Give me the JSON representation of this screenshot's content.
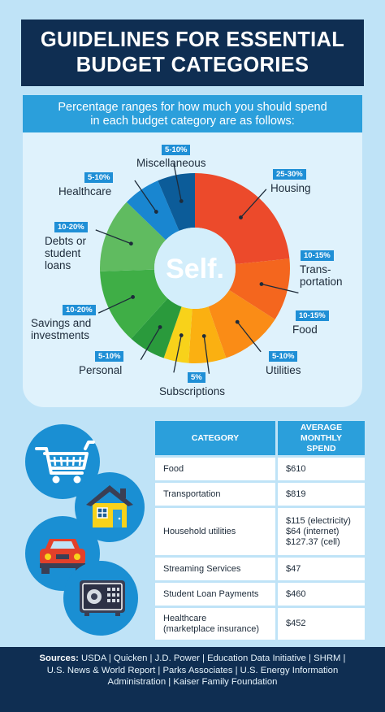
{
  "title": {
    "line1": "GUIDELINES FOR ESSENTIAL",
    "line2": "BUDGET CATEGORIES"
  },
  "subtitle": {
    "line1": "Percentage ranges for how much you should spend",
    "line2": "in each budget category are as follows:"
  },
  "logo_text": "Self.",
  "chart_data": {
    "type": "pie",
    "variant": "donut",
    "slices": [
      {
        "label": "Housing",
        "range": "25-30%",
        "value": 27.5,
        "color": "#ec4a2b"
      },
      {
        "label": "Trans-portation",
        "range": "10-15%",
        "value": 12.5,
        "color": "#f4661e"
      },
      {
        "label": "Food",
        "range": "10-15%",
        "value": 12.5,
        "color": "#fa8c16"
      },
      {
        "label": "Utilities",
        "range": "5-10%",
        "value": 7.5,
        "color": "#fbb011"
      },
      {
        "label": "Subscriptions",
        "range": "5%",
        "value": 5,
        "color": "#f8d21a"
      },
      {
        "label": "Personal",
        "range": "5-10%",
        "value": 7.5,
        "color": "#2a9a3c"
      },
      {
        "label": "Savings and investments",
        "range": "10-20%",
        "value": 15,
        "color": "#3fae46"
      },
      {
        "label": "Debts or student loans",
        "range": "10-20%",
        "value": 15,
        "color": "#60bb60"
      },
      {
        "label": "Healthcare",
        "range": "5-10%",
        "value": 7.5,
        "color": "#1986d0"
      },
      {
        "label": "Miscellaneous",
        "range": "5-10%",
        "value": 7.5,
        "color": "#0c5c99"
      }
    ]
  },
  "labels": {
    "misc": {
      "range": "5-10%",
      "name": "Miscellaneous"
    },
    "health": {
      "range": "5-10%",
      "name": "Healthcare"
    },
    "housing": {
      "range": "25-30%",
      "name": "Housing"
    },
    "debts": {
      "range": "10-20%",
      "l1": "Debts or",
      "l2": "student",
      "l3": "loans"
    },
    "transport": {
      "range": "10-15%",
      "l1": "Trans-",
      "l2": "portation"
    },
    "food": {
      "range": "10-15%",
      "name": "Food"
    },
    "savings": {
      "range": "10-20%",
      "l1": "Savings and",
      "l2": "investments"
    },
    "personal": {
      "range": "5-10%",
      "name": "Personal"
    },
    "utilities": {
      "range": "5-10%",
      "name": "Utilities"
    },
    "subs": {
      "range": "5%",
      "name": "Subscriptions"
    }
  },
  "table": {
    "headers": {
      "category": "CATEGORY",
      "spend_l1": "AVERAGE",
      "spend_l2": "MONTHLY SPEND"
    },
    "rows": [
      {
        "category": "Food",
        "spend": "$610"
      },
      {
        "category": "Transportation",
        "spend": "$819"
      },
      {
        "category": "Household utilities",
        "spend_l1": "$115 (electricity)",
        "spend_l2": "$64 (internet)",
        "spend_l3": "$127.37 (cell)"
      },
      {
        "category": "Streaming Services",
        "spend": "$47"
      },
      {
        "category": "Student Loan Payments",
        "spend": "$460"
      },
      {
        "category_l1": "Healthcare",
        "category_l2": "(marketplace insurance)",
        "spend": "$452"
      }
    ]
  },
  "icons": [
    "shopping-cart-icon",
    "house-icon",
    "car-icon",
    "safe-icon"
  ],
  "sources": {
    "label": "Sources:",
    "line1": " USDA | Quicken | J.D. Power | Education Data Initiative | SHRM |",
    "line2": "U.S. News & World Report | Parks Associates | U.S. Energy Information",
    "line3": "Administration | Kaiser Family Foundation"
  }
}
